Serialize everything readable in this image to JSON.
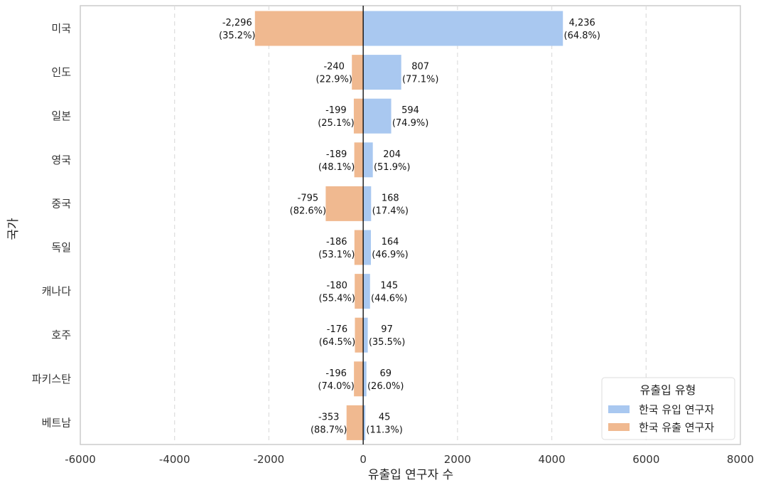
{
  "chart_data": {
    "type": "bar",
    "orientation": "horizontal",
    "stacked_diverging": true,
    "xlabel": "유출입 연구자 수",
    "ylabel": "국가",
    "xlim": [
      -6000,
      8000
    ],
    "xticks": [
      -6000,
      -4000,
      -2000,
      0,
      2000,
      4000,
      6000,
      8000
    ],
    "xtick_labels": [
      "-6000",
      "-4000",
      "-2000",
      "0",
      "2000",
      "4000",
      "6000",
      "8000"
    ],
    "grid": "x-dashed",
    "categories": [
      "미국",
      "인도",
      "일본",
      "영국",
      "중국",
      "독일",
      "캐나다",
      "호주",
      "파키스탄",
      "베트남"
    ],
    "series": [
      {
        "name": "한국 유입 연구자",
        "color": "#a9c8f0",
        "values": [
          4236,
          807,
          594,
          204,
          168,
          164,
          145,
          97,
          69,
          45
        ],
        "value_labels": [
          "4,236",
          "807",
          "594",
          "204",
          "168",
          "164",
          "145",
          "97",
          "69",
          "45"
        ],
        "percent_labels": [
          "(64.8%)",
          "(77.1%)",
          "(74.9%)",
          "(51.9%)",
          "(17.4%)",
          "(46.9%)",
          "(44.6%)",
          "(35.5%)",
          "(26.0%)",
          "(11.3%)"
        ]
      },
      {
        "name": "한국 유출 연구자",
        "color": "#f0b990",
        "values": [
          -2296,
          -240,
          -199,
          -189,
          -795,
          -186,
          -180,
          -176,
          -196,
          -353
        ],
        "value_labels": [
          "-2,296",
          "-240",
          "-199",
          "-189",
          "-795",
          "-186",
          "-180",
          "-176",
          "-196",
          "-353"
        ],
        "percent_labels": [
          "(35.2%)",
          "(22.9%)",
          "(25.1%)",
          "(48.1%)",
          "(82.6%)",
          "(53.1%)",
          "(55.4%)",
          "(64.5%)",
          "(74.0%)",
          "(88.7%)"
        ]
      }
    ],
    "legend": {
      "title": "유출입 유형",
      "placement": "bottom-right"
    }
  }
}
